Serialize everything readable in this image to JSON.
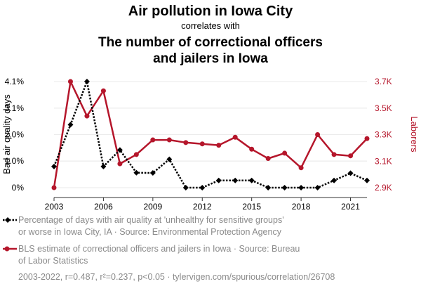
{
  "title": "Air pollution in Iowa City",
  "subtitle": "correlates with",
  "second_title_lines": [
    "The number of correctional officers",
    "and jailers in Iowa"
  ],
  "colors": {
    "series1": "#000000",
    "series2": "#b5162b",
    "grid": "#e8e8e8",
    "muted": "#8a8a8a"
  },
  "legend": [
    {
      "lines": [
        "Percentage of days with air quality at 'unhealthy for sensitive groups'",
        "or worse in Iowa City, IA · Source: Environmental Protection Agency"
      ]
    },
    {
      "lines": [
        "BLS estimate of correctional officers and jailers in Iowa · Source: Bureau",
        "of Labor Statistics"
      ]
    }
  ],
  "footer": "2003-2022, r=0.487, r²=0.237, p<0.05 · tylervigen.com/spurious/correlation/26708",
  "chart_data": {
    "type": "line",
    "x": [
      2003,
      2004,
      2005,
      2006,
      2007,
      2008,
      2009,
      2010,
      2011,
      2012,
      2013,
      2014,
      2015,
      2016,
      2017,
      2018,
      2019,
      2020,
      2021,
      2022
    ],
    "xticks": [
      2003,
      2006,
      2009,
      2012,
      2015,
      2018,
      2021
    ],
    "series": [
      {
        "name": "Percentage of days with air quality at 'unhealthy for sensitive groups' or worse in Iowa City, IA",
        "axis": "left",
        "style": "dotted",
        "marker": "diamond",
        "values": [
          0.82,
          2.44,
          4.11,
          0.82,
          1.46,
          0.58,
          0.57,
          1.1,
          0.0,
          0.0,
          0.28,
          0.28,
          0.28,
          0.0,
          0.0,
          0.0,
          0.0,
          0.28,
          0.56,
          0.28
        ]
      },
      {
        "name": "BLS estimate of correctional officers and jailers in Iowa",
        "axis": "right",
        "style": "solid",
        "marker": "circle",
        "values": [
          2900,
          3700,
          3440,
          3630,
          3080,
          3150,
          3260,
          3260,
          3240,
          3230,
          3220,
          3280,
          3190,
          3120,
          3160,
          3050,
          3300,
          3150,
          3140,
          3270
        ]
      }
    ],
    "y_left": {
      "label": "Bad air quality days",
      "range": [
        0,
        4.11
      ],
      "ticks": [
        0,
        1.03,
        2.06,
        3.08,
        4.11
      ],
      "tick_labels": [
        "0%",
        "1.0%",
        "2.0%",
        "3.1%",
        "4.1%"
      ]
    },
    "y_right": {
      "label": "Laborers",
      "range": [
        2900,
        3700
      ],
      "ticks": [
        2900,
        3100,
        3300,
        3500,
        3700
      ],
      "tick_labels": [
        "2.9K",
        "3.1K",
        "3.3K",
        "3.5K",
        "3.7K"
      ]
    },
    "grid": true
  }
}
